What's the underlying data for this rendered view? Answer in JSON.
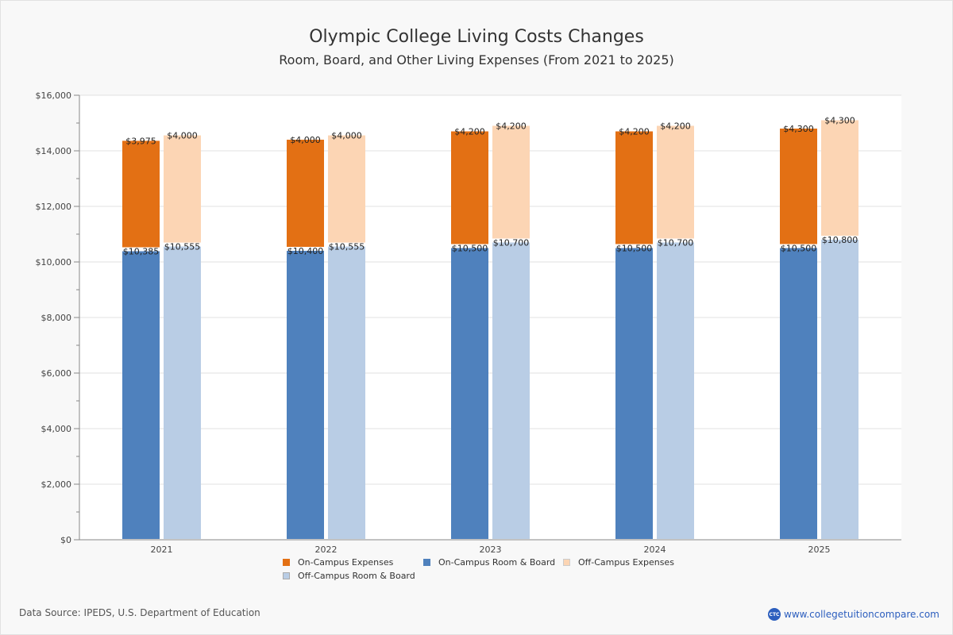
{
  "chart_data": {
    "type": "bar",
    "stacked": true,
    "title": "Olympic College Living Costs Changes",
    "subtitle": "Room, Board, and Other Living Expenses (From 2021 to 2025)",
    "xlabel": "",
    "ylabel": "",
    "ylim": [
      0,
      16000
    ],
    "yticks": [
      0,
      2000,
      4000,
      6000,
      8000,
      10000,
      12000,
      14000,
      16000
    ],
    "ytick_labels": [
      "$0",
      "$2,000",
      "$4,000",
      "$6,000",
      "$8,000",
      "$10,000",
      "$12,000",
      "$14,000",
      "$16,000"
    ],
    "grid": true,
    "categories": [
      "2021",
      "2022",
      "2023",
      "2024",
      "2025"
    ],
    "stacks": [
      {
        "name": "On-Campus",
        "base_series": "On-Campus Room & Board",
        "top_series": "On-Campus Expenses"
      },
      {
        "name": "Off-Campus",
        "base_series": "Off-Campus Room & Board",
        "top_series": "Off-Campus Expenses"
      }
    ],
    "series": [
      {
        "name": "On-Campus Expenses",
        "color": "#e37014",
        "values": [
          3975,
          4000,
          4200,
          4200,
          4300
        ],
        "labels": [
          "$3,975",
          "$4,000",
          "$4,200",
          "$4,200",
          "$4,300"
        ]
      },
      {
        "name": "On-Campus Room & Board",
        "color": "#4f81bd",
        "values": [
          10385,
          10400,
          10500,
          10500,
          10500
        ],
        "labels": [
          "$10,385",
          "$10,400",
          "$10,500",
          "$10,500",
          "$10,500"
        ]
      },
      {
        "name": "Off-Campus Expenses",
        "color": "#fcd5b4",
        "values": [
          4000,
          4000,
          4200,
          4200,
          4300
        ],
        "labels": [
          "$4,000",
          "$4,000",
          "$4,200",
          "$4,200",
          "$4,300"
        ]
      },
      {
        "name": "Off-Campus Room & Board",
        "color": "#b9cde5",
        "values": [
          10555,
          10555,
          10700,
          10700,
          10800
        ],
        "labels": [
          "$10,555",
          "$10,555",
          "$10,700",
          "$10,700",
          "$10,800"
        ]
      }
    ],
    "legend_position": "bottom"
  },
  "footer": {
    "source": "Data Source: IPEDS, U.S. Department of Education",
    "brand_logo": "CTC",
    "brand_url": "www.collegetuitioncompare.com"
  }
}
